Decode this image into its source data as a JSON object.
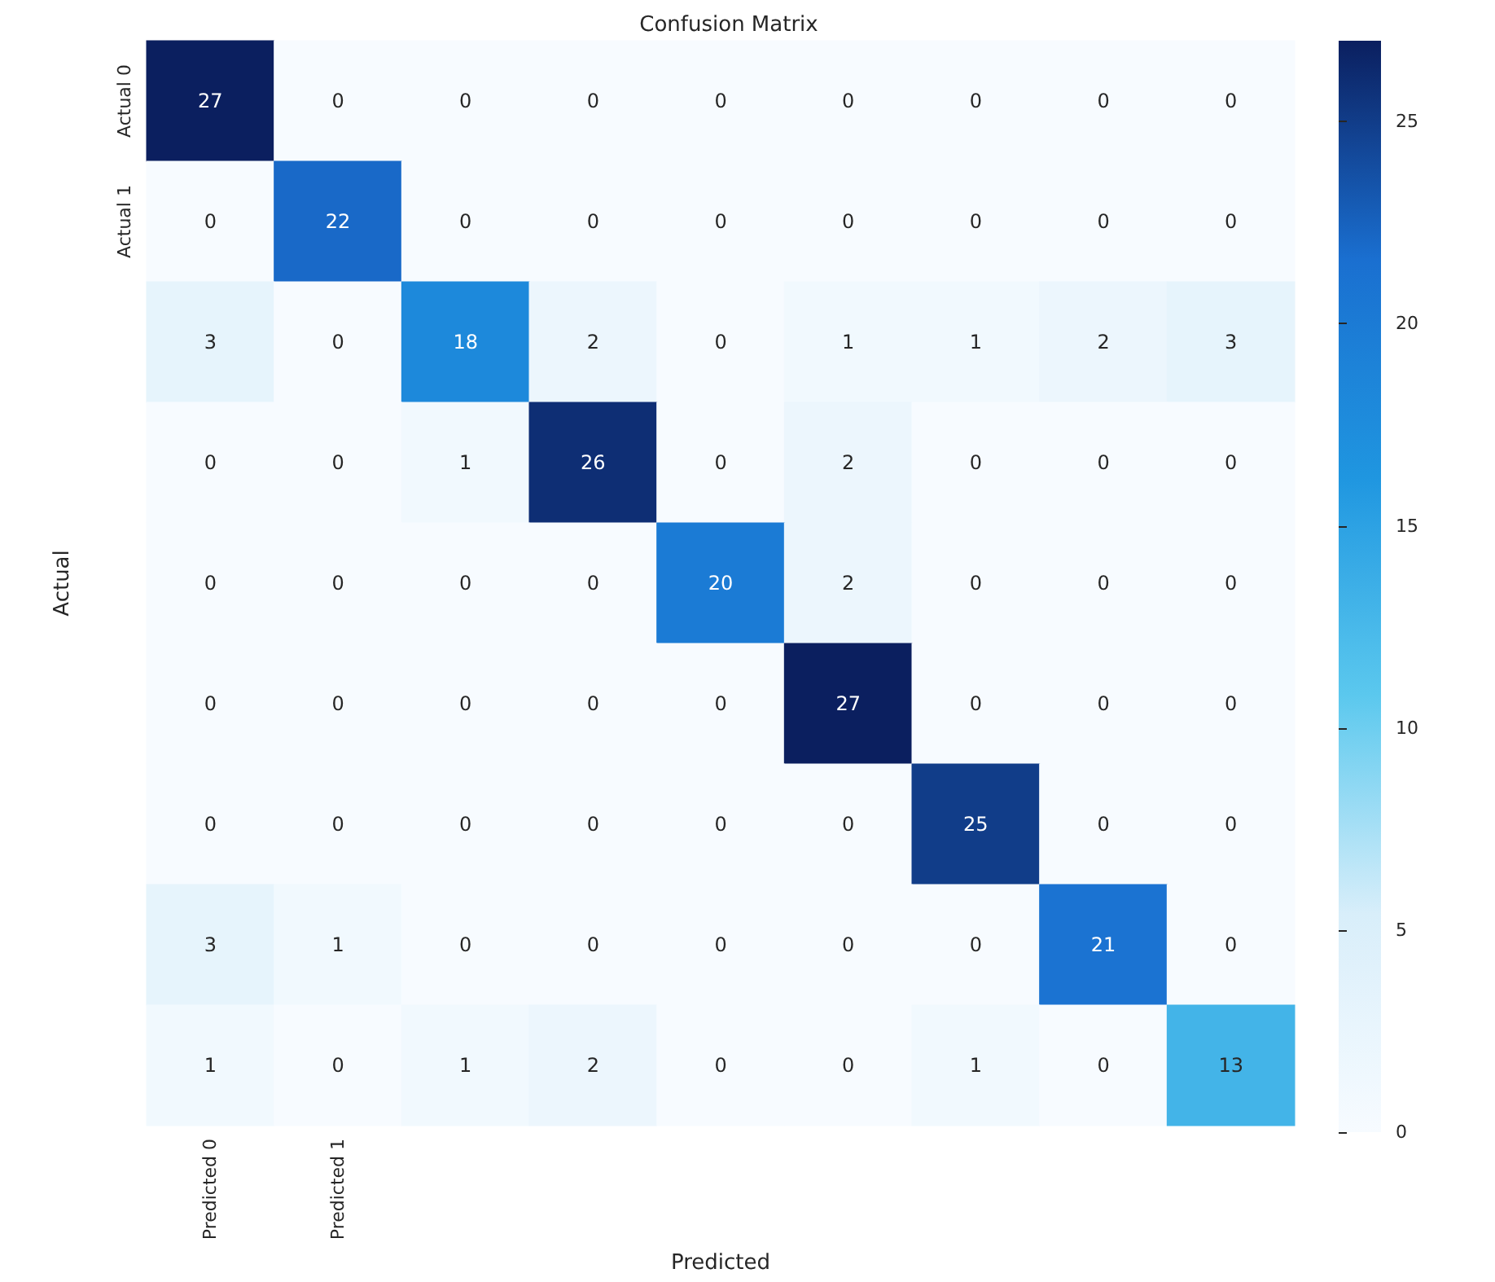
{
  "chart_data": {
    "type": "heatmap",
    "title": "Confusion Matrix",
    "xlabel": "Predicted",
    "ylabel": "Actual",
    "categories": [
      "Predicted 0",
      "Predicted 1",
      null,
      null,
      null,
      null,
      null,
      null,
      null
    ],
    "y_categories": [
      "Actual 0",
      "Actual 1",
      null,
      null,
      null,
      null,
      null,
      null,
      null
    ],
    "cells": [
      [
        27,
        0,
        0,
        0,
        0,
        0,
        0,
        0,
        0
      ],
      [
        0,
        22,
        0,
        0,
        0,
        0,
        0,
        0,
        0
      ],
      [
        3,
        0,
        18,
        2,
        0,
        1,
        1,
        2,
        3
      ],
      [
        0,
        0,
        1,
        26,
        0,
        2,
        0,
        0,
        0
      ],
      [
        0,
        0,
        0,
        0,
        20,
        2,
        0,
        0,
        0
      ],
      [
        0,
        0,
        0,
        0,
        0,
        27,
        0,
        0,
        0
      ],
      [
        0,
        0,
        0,
        0,
        0,
        0,
        25,
        0,
        0
      ],
      [
        3,
        1,
        0,
        0,
        0,
        0,
        0,
        21,
        0
      ],
      [
        1,
        0,
        1,
        2,
        0,
        0,
        1,
        0,
        13
      ]
    ],
    "data_labels": true,
    "clim": [
      0,
      27
    ],
    "cticks": [
      0,
      5,
      10,
      15,
      20,
      25
    ]
  }
}
